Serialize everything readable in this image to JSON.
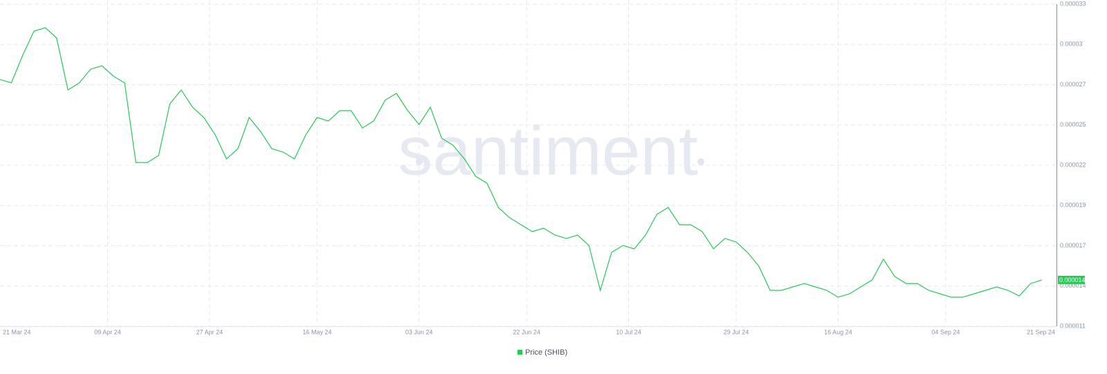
{
  "chart_data": {
    "type": "line",
    "watermark": "santiment",
    "x": [
      "2024-03-21",
      "2024-03-23",
      "2024-03-25",
      "2024-03-27",
      "2024-03-29",
      "2024-03-31",
      "2024-04-02",
      "2024-04-04",
      "2024-04-06",
      "2024-04-08",
      "2024-04-10",
      "2024-04-12",
      "2024-04-14",
      "2024-04-16",
      "2024-04-18",
      "2024-04-20",
      "2024-04-22",
      "2024-04-24",
      "2024-04-26",
      "2024-04-28",
      "2024-04-30",
      "2024-05-02",
      "2024-05-04",
      "2024-05-06",
      "2024-05-08",
      "2024-05-10",
      "2024-05-12",
      "2024-05-14",
      "2024-05-16",
      "2024-05-18",
      "2024-05-20",
      "2024-05-22",
      "2024-05-24",
      "2024-05-26",
      "2024-05-28",
      "2024-05-30",
      "2024-06-01",
      "2024-06-03",
      "2024-06-05",
      "2024-06-07",
      "2024-06-09",
      "2024-06-11",
      "2024-06-13",
      "2024-06-15",
      "2024-06-17",
      "2024-06-19",
      "2024-06-21",
      "2024-06-23",
      "2024-06-25",
      "2024-06-27",
      "2024-06-29",
      "2024-07-01",
      "2024-07-03",
      "2024-07-05",
      "2024-07-07",
      "2024-07-09",
      "2024-07-11",
      "2024-07-13",
      "2024-07-15",
      "2024-07-17",
      "2024-07-19",
      "2024-07-21",
      "2024-07-23",
      "2024-07-25",
      "2024-07-27",
      "2024-07-29",
      "2024-07-31",
      "2024-08-02",
      "2024-08-04",
      "2024-08-06",
      "2024-08-08",
      "2024-08-10",
      "2024-08-12",
      "2024-08-14",
      "2024-08-16",
      "2024-08-18",
      "2024-08-20",
      "2024-08-22",
      "2024-08-24",
      "2024-08-26",
      "2024-08-28",
      "2024-08-30",
      "2024-09-01",
      "2024-09-03",
      "2024-09-05",
      "2024-09-07",
      "2024-09-09",
      "2024-09-11",
      "2024-09-13",
      "2024-09-15",
      "2024-09-17",
      "2024-09-19",
      "2024-09-21"
    ],
    "series": [
      {
        "name": "Price (SHIB)",
        "color": "#26c953",
        "values": [
          2.765e-05,
          2.742e-05,
          2.927e-05,
          3.089e-05,
          3.112e-05,
          3.043e-05,
          2.695e-05,
          2.742e-05,
          2.834e-05,
          2.857e-05,
          2.788e-05,
          2.742e-05,
          2.208e-05,
          2.208e-05,
          2.255e-05,
          2.602e-05,
          2.695e-05,
          2.579e-05,
          2.51e-05,
          2.394e-05,
          2.232e-05,
          2.301e-05,
          2.51e-05,
          2.417e-05,
          2.301e-05,
          2.278e-05,
          2.232e-05,
          2.394e-05,
          2.51e-05,
          2.487e-05,
          2.556e-05,
          2.556e-05,
          2.44e-05,
          2.487e-05,
          2.626e-05,
          2.672e-05,
          2.556e-05,
          2.463e-05,
          2.579e-05,
          2.371e-05,
          2.324e-05,
          2.232e-05,
          2.116e-05,
          2.069e-05,
          1.907e-05,
          1.838e-05,
          1.791e-05,
          1.745e-05,
          1.768e-05,
          1.722e-05,
          1.699e-05,
          1.722e-05,
          1.652e-05,
          1.351e-05,
          1.606e-05,
          1.652e-05,
          1.629e-05,
          1.722e-05,
          1.861e-05,
          1.907e-05,
          1.791e-05,
          1.791e-05,
          1.745e-05,
          1.629e-05,
          1.699e-05,
          1.675e-05,
          1.606e-05,
          1.513e-05,
          1.351e-05,
          1.351e-05,
          1.374e-05,
          1.397e-05,
          1.374e-05,
          1.351e-05,
          1.305e-05,
          1.328e-05,
          1.374e-05,
          1.421e-05,
          1.56e-05,
          1.444e-05,
          1.397e-05,
          1.397e-05,
          1.351e-05,
          1.328e-05,
          1.305e-05,
          1.305e-05,
          1.328e-05,
          1.351e-05,
          1.374e-05,
          1.351e-05,
          1.314e-05,
          1.397e-05,
          1.421e-05
        ]
      }
    ],
    "last_value_label": "0.000014",
    "xlim": [
      "2024-03-21",
      "2024-09-21"
    ],
    "xticks": [
      {
        "value": "2024-03-21",
        "label": "21 Mar 24"
      },
      {
        "value": "2024-04-09",
        "label": "09 Apr 24"
      },
      {
        "value": "2024-04-27",
        "label": "27 Apr 24"
      },
      {
        "value": "2024-05-16",
        "label": "16 May 24"
      },
      {
        "value": "2024-06-03",
        "label": "03 Jun 24"
      },
      {
        "value": "2024-06-22",
        "label": "22 Jun 24"
      },
      {
        "value": "2024-07-10",
        "label": "10 Jul 24"
      },
      {
        "value": "2024-07-29",
        "label": "29 Jul 24"
      },
      {
        "value": "2024-08-16",
        "label": "16 Aug 24"
      },
      {
        "value": "2024-09-04",
        "label": "04 Sep 24"
      },
      {
        "value": "2024-09-21",
        "label": "21 Sep 24"
      }
    ],
    "ylim": [
      1.11e-05,
      3.27e-05
    ],
    "yticks": [
      {
        "value": 1.11e-05,
        "label": "0.000011"
      },
      {
        "value": 1.38e-05,
        "label": "0.000014"
      },
      {
        "value": 1.65e-05,
        "label": "0.000017"
      },
      {
        "value": 1.92e-05,
        "label": "0.000019"
      },
      {
        "value": 2.19e-05,
        "label": "0.000022"
      },
      {
        "value": 2.46e-05,
        "label": "0.000025"
      },
      {
        "value": 2.73e-05,
        "label": "0.000027"
      },
      3e-05,
      {
        "value": 3.27e-05,
        "label": "0.000033"
      }
    ],
    "grid": true
  }
}
